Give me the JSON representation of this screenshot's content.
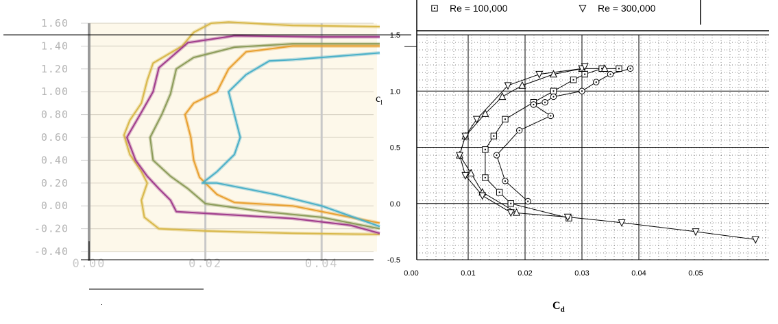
{
  "chart_data": [
    {
      "type": "line",
      "title": "",
      "xlabel": "",
      "ylabel": "",
      "xlim": [
        0.0,
        0.05
      ],
      "ylim": [
        -0.4,
        1.6
      ],
      "x_ticks": [
        "0.00",
        "0.02",
        "0.04"
      ],
      "y_ticks": [
        "1.60",
        "1.40",
        "1.20",
        "1.00",
        "0.80",
        "0.60",
        "0.40",
        "0.20",
        "0.00",
        "-0.20",
        "-0.40"
      ],
      "grid": true,
      "background": "#fdf8ea",
      "series": [
        {
          "color": "#d8b84a",
          "points": [
            [
              0.05,
              1.57
            ],
            [
              0.035,
              1.58
            ],
            [
              0.024,
              1.61
            ],
            [
              0.021,
              1.6
            ],
            [
              0.018,
              1.52
            ],
            [
              0.016,
              1.4
            ],
            [
              0.011,
              1.25
            ],
            [
              0.01,
              1.1
            ],
            [
              0.009,
              0.9
            ],
            [
              0.007,
              0.75
            ],
            [
              0.006,
              0.62
            ],
            [
              0.007,
              0.45
            ],
            [
              0.009,
              0.3
            ],
            [
              0.01,
              0.2
            ],
            [
              0.009,
              0.05
            ],
            [
              0.0095,
              -0.1
            ],
            [
              0.012,
              -0.2
            ],
            [
              0.02,
              -0.22
            ],
            [
              0.035,
              -0.24
            ],
            [
              0.05,
              -0.25
            ]
          ]
        },
        {
          "color": "#a03c8c",
          "points": [
            [
              0.05,
              1.48
            ],
            [
              0.04,
              1.48
            ],
            [
              0.025,
              1.49
            ],
            [
              0.017,
              1.43
            ],
            [
              0.012,
              1.21
            ],
            [
              0.011,
              1.0
            ],
            [
              0.009,
              0.82
            ],
            [
              0.0065,
              0.6
            ],
            [
              0.008,
              0.4
            ],
            [
              0.01,
              0.26
            ],
            [
              0.012,
              0.15
            ],
            [
              0.014,
              0.05
            ],
            [
              0.015,
              -0.05
            ],
            [
              0.025,
              -0.08
            ],
            [
              0.035,
              -0.11
            ],
            [
              0.045,
              -0.17
            ],
            [
              0.05,
              -0.24
            ]
          ]
        },
        {
          "color": "#8c9c5a",
          "points": [
            [
              0.05,
              1.42
            ],
            [
              0.035,
              1.42
            ],
            [
              0.025,
              1.39
            ],
            [
              0.018,
              1.3
            ],
            [
              0.015,
              1.2
            ],
            [
              0.014,
              0.98
            ],
            [
              0.0125,
              0.8
            ],
            [
              0.0105,
              0.6
            ],
            [
              0.011,
              0.4
            ],
            [
              0.014,
              0.26
            ],
            [
              0.017,
              0.15
            ],
            [
              0.02,
              0.02
            ],
            [
              0.03,
              -0.05
            ],
            [
              0.04,
              -0.1
            ],
            [
              0.05,
              -0.2
            ]
          ]
        },
        {
          "color": "#e8a030",
          "points": [
            [
              0.05,
              1.4
            ],
            [
              0.035,
              1.4
            ],
            [
              0.027,
              1.35
            ],
            [
              0.024,
              1.2
            ],
            [
              0.022,
              1.0
            ],
            [
              0.018,
              0.9
            ],
            [
              0.0165,
              0.8
            ],
            [
              0.0175,
              0.6
            ],
            [
              0.018,
              0.4
            ],
            [
              0.019,
              0.25
            ],
            [
              0.02,
              0.2
            ],
            [
              0.022,
              0.1
            ],
            [
              0.025,
              0.03
            ],
            [
              0.035,
              0.0
            ],
            [
              0.045,
              -0.1
            ],
            [
              0.05,
              -0.15
            ]
          ]
        },
        {
          "color": "#4ab0c8",
          "points": [
            [
              0.05,
              1.34
            ],
            [
              0.035,
              1.28
            ],
            [
              0.031,
              1.27
            ],
            [
              0.027,
              1.15
            ],
            [
              0.024,
              1.0
            ],
            [
              0.025,
              0.8
            ],
            [
              0.026,
              0.6
            ],
            [
              0.025,
              0.45
            ],
            [
              0.022,
              0.3
            ],
            [
              0.0195,
              0.2
            ],
            [
              0.022,
              0.2
            ],
            [
              0.027,
              0.15
            ],
            [
              0.032,
              0.1
            ],
            [
              0.04,
              0.0
            ],
            [
              0.05,
              -0.18
            ]
          ]
        }
      ]
    },
    {
      "type": "line",
      "title": "",
      "xlabel": "C_d",
      "ylabel": "C_l",
      "xlim": [
        0.0,
        0.05
      ],
      "ylim": [
        -0.5,
        1.5
      ],
      "x_ticks": [
        "0.00",
        "0.01",
        "0.02",
        "0.03",
        "0.04",
        "0.05"
      ],
      "y_ticks": [
        "1.5",
        "1.0",
        "0.5",
        "0.0",
        "-0.5"
      ],
      "grid": true,
      "legend": {
        "position": "top",
        "entries": [
          "Re = 100,000",
          "Re = 300,000"
        ]
      },
      "series": [
        {
          "name": "Re = 100,000",
          "marker": "square",
          "points": [
            [
              0.0277,
              -0.13
            ],
            [
              0.0175,
              0.0
            ],
            [
              0.0155,
              0.1
            ],
            [
              0.013,
              0.23
            ],
            [
              0.013,
              0.48
            ],
            [
              0.0145,
              0.6
            ],
            [
              0.0165,
              0.75
            ],
            [
              0.0215,
              0.9
            ],
            [
              0.025,
              1.0
            ],
            [
              0.0285,
              1.1
            ],
            [
              0.0305,
              1.15
            ],
            [
              0.0335,
              1.2
            ],
            [
              0.0365,
              1.2
            ]
          ]
        },
        {
          "name": "",
          "marker": "circle",
          "points": [
            [
              0.0205,
              0.02
            ],
            [
              0.0165,
              0.2
            ],
            [
              0.015,
              0.43
            ],
            [
              0.019,
              0.65
            ],
            [
              0.0245,
              0.78
            ],
            [
              0.0215,
              0.88
            ],
            [
              0.0235,
              0.9
            ],
            [
              0.025,
              0.95
            ],
            [
              0.03,
              1.0
            ],
            [
              0.0325,
              1.08
            ],
            [
              0.035,
              1.15
            ],
            [
              0.0385,
              1.2
            ]
          ]
        },
        {
          "name": "",
          "marker": "triangle-up",
          "points": [
            [
              0.0185,
              -0.08
            ],
            [
              0.0125,
              0.1
            ],
            [
              0.0105,
              0.27
            ],
            [
              0.0085,
              0.43
            ],
            [
              0.0095,
              0.6
            ],
            [
              0.013,
              0.8
            ],
            [
              0.016,
              0.95
            ],
            [
              0.0195,
              1.05
            ],
            [
              0.025,
              1.15
            ],
            [
              0.03,
              1.2
            ],
            [
              0.034,
              1.2
            ]
          ]
        },
        {
          "name": "Re = 300,000",
          "marker": "triangle-down",
          "points": [
            [
              0.0605,
              -0.32
            ],
            [
              0.05,
              -0.25
            ],
            [
              0.037,
              -0.17
            ],
            [
              0.0275,
              -0.12
            ],
            [
              0.0175,
              -0.08
            ],
            [
              0.0125,
              0.07
            ],
            [
              0.0095,
              0.25
            ],
            [
              0.0085,
              0.43
            ],
            [
              0.0095,
              0.6
            ],
            [
              0.0115,
              0.75
            ],
            [
              0.017,
              1.05
            ],
            [
              0.0225,
              1.15
            ],
            [
              0.03,
              1.2
            ],
            [
              0.0305,
              1.22
            ]
          ]
        }
      ]
    }
  ]
}
